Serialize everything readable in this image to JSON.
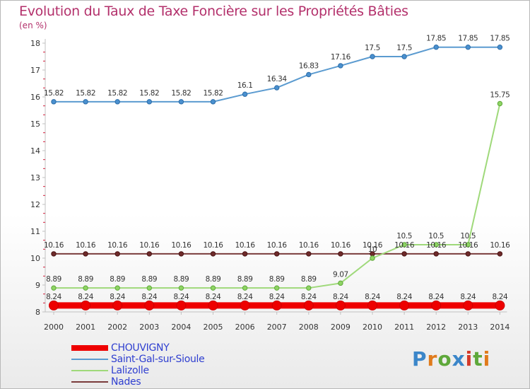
{
  "colors": {
    "title": "#b3306b",
    "axis": "#c0c0c0",
    "legend_text": "#2f3fd0",
    "logo": [
      "#3b86c9",
      "#e07b1c",
      "#5ea83a",
      "#3b86c9",
      "#d43a2a",
      "#5ea83a",
      "#e07b1c"
    ]
  },
  "logo": {
    "text": "Proxiti"
  },
  "chart_data": {
    "type": "line",
    "title": "Evolution du Taux de Taxe Foncière sur les Propriétés Bâties",
    "ylabel": "(en %)",
    "xlabel": "",
    "ylim": [
      8,
      18
    ],
    "yticks": [
      "8",
      "9",
      "10",
      "11",
      "12",
      "13",
      "14",
      "15",
      "16",
      "17",
      "18"
    ],
    "categories": [
      "2000",
      "2001",
      "2002",
      "2003",
      "2004",
      "2005",
      "2006",
      "2007",
      "2008",
      "2009",
      "2010",
      "2011",
      "2012",
      "2013",
      "2014"
    ],
    "series": [
      {
        "name": "CHOUVIGNY",
        "color": "#ee0000",
        "values": [
          8.24,
          8.24,
          8.24,
          8.24,
          8.24,
          8.24,
          8.24,
          8.24,
          8.24,
          8.24,
          8.24,
          8.24,
          8.24,
          8.24,
          8.24
        ],
        "labels": [
          "8.24",
          "8.24",
          "8.24",
          "8.24",
          "8.24",
          "8.24",
          "8.24",
          "8.24",
          "8.24",
          "8.24",
          "8.24",
          "8.24",
          "8.24",
          "8.24",
          "8.24"
        ]
      },
      {
        "name": "Saint-Gal-sur-Sioule",
        "color": "#5b9bd0",
        "values": [
          15.82,
          15.82,
          15.82,
          15.82,
          15.82,
          15.82,
          16.1,
          16.34,
          16.83,
          17.16,
          17.5,
          17.5,
          17.85,
          17.85,
          17.85
        ],
        "labels": [
          "15.82",
          "15.82",
          "15.82",
          "15.82",
          "15.82",
          "15.82",
          "16.1",
          "16.34",
          "16.83",
          "17.16",
          "17.5",
          "17.5",
          "17.85",
          "17.85",
          "17.85"
        ]
      },
      {
        "name": "Lalizolle",
        "color": "#9fd97a",
        "values": [
          8.89,
          8.89,
          8.89,
          8.89,
          8.89,
          8.89,
          8.89,
          8.89,
          8.89,
          9.07,
          10.0,
          10.5,
          10.5,
          10.5,
          15.75
        ],
        "labels": [
          "8.89",
          "8.89",
          "8.89",
          "8.89",
          "8.89",
          "8.89",
          "8.89",
          "8.89",
          "8.89",
          "9.07",
          "10",
          "10.5",
          "10.5",
          "10.5",
          "15.75"
        ]
      },
      {
        "name": "Nades",
        "color": "#7a3b3b",
        "values": [
          10.16,
          10.16,
          10.16,
          10.16,
          10.16,
          10.16,
          10.16,
          10.16,
          10.16,
          10.16,
          10.16,
          10.16,
          10.16,
          10.16,
          10.16
        ],
        "labels": [
          "10.16",
          "10.16",
          "10.16",
          "10.16",
          "10.16",
          "10.16",
          "10.16",
          "10.16",
          "10.16",
          "10.16",
          "10.16",
          "10.16",
          "10.16",
          "10.16",
          "10.16"
        ]
      }
    ],
    "legend_position": "bottom-left"
  }
}
